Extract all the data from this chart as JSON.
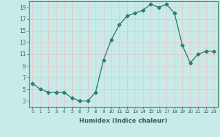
{
  "x": [
    0,
    1,
    2,
    3,
    4,
    5,
    6,
    7,
    8,
    9,
    10,
    11,
    12,
    13,
    14,
    15,
    16,
    17,
    18,
    19,
    20,
    21,
    22,
    23
  ],
  "y": [
    6,
    5,
    4.5,
    4.5,
    4.5,
    3.5,
    3,
    3,
    4.5,
    10,
    13.5,
    16,
    17.5,
    18,
    18.5,
    19.5,
    19,
    19.5,
    18,
    12.5,
    9.5,
    11,
    11.5,
    11.5
  ],
  "line_color": "#2e7d6e",
  "marker": "D",
  "marker_size": 2.5,
  "background_color": "#c8eae8",
  "grid_color": "#e8c8c8",
  "xlabel": "Humidex (Indice chaleur)",
  "xlim": [
    -0.5,
    23.5
  ],
  "ylim": [
    2,
    20
  ],
  "yticks": [
    3,
    5,
    7,
    9,
    11,
    13,
    15,
    17,
    19
  ],
  "xticks": [
    0,
    1,
    2,
    3,
    4,
    5,
    6,
    7,
    8,
    9,
    10,
    11,
    12,
    13,
    14,
    15,
    16,
    17,
    18,
    19,
    20,
    21,
    22,
    23
  ],
  "xtick_labels": [
    "0",
    "1",
    "2",
    "3",
    "4",
    "5",
    "6",
    "7",
    "8",
    "9",
    "10",
    "11",
    "12",
    "13",
    "14",
    "15",
    "16",
    "17",
    "18",
    "19",
    "20",
    "21",
    "22",
    "23"
  ]
}
